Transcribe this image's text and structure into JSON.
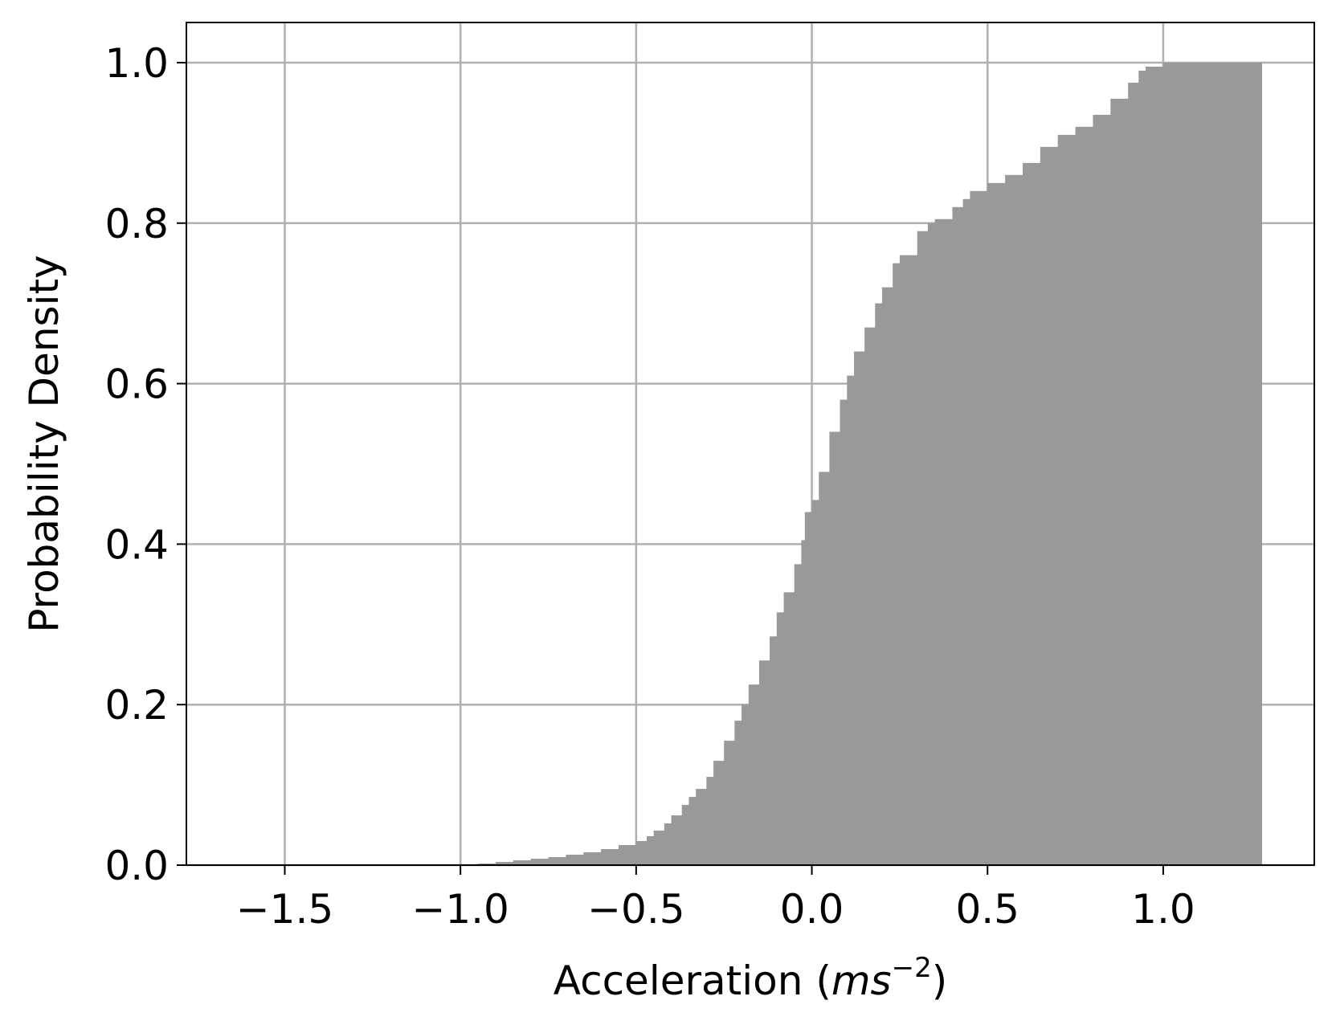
{
  "chart_data": {
    "type": "area",
    "style": "cumulative histogram (filled bars)",
    "xlabel_prefix": "Acceleration (",
    "xlabel_unit_base": "ms",
    "xlabel_unit_exp": "−2",
    "xlabel_suffix": ")",
    "ylabel": "Probability Density",
    "xlim": [
      -1.78,
      1.43
    ],
    "ylim": [
      0.0,
      1.05
    ],
    "xticks": [
      -1.5,
      -1.0,
      -0.5,
      0.0,
      0.5,
      1.0
    ],
    "xtick_labels": [
      "−1.5",
      "−1.0",
      "−0.5",
      "0.0",
      "0.5",
      "1.0"
    ],
    "yticks": [
      0.0,
      0.2,
      0.4,
      0.6,
      0.8,
      1.0
    ],
    "ytick_labels": [
      "0.0",
      "0.2",
      "0.4",
      "0.6",
      "0.8",
      "1.0"
    ],
    "grid": true,
    "legend": "none",
    "fill_color": "#999999",
    "grid_color": "#b0b0b0",
    "series": [
      {
        "x": [
          -1.0,
          -0.97,
          -0.95,
          -0.9,
          -0.85,
          -0.8,
          -0.75,
          -0.7,
          -0.65,
          -0.6,
          -0.55,
          -0.5,
          -0.47,
          -0.45,
          -0.42,
          -0.4,
          -0.37,
          -0.35,
          -0.33,
          -0.3,
          -0.28,
          -0.25,
          -0.22,
          -0.2,
          -0.18,
          -0.15,
          -0.12,
          -0.1,
          -0.08,
          -0.05,
          -0.03,
          -0.02,
          0.0,
          0.02,
          0.05,
          0.08,
          0.1,
          0.12,
          0.15,
          0.18,
          0.2,
          0.23,
          0.25,
          0.3,
          0.33,
          0.35,
          0.4,
          0.43,
          0.45,
          0.5,
          0.55,
          0.6,
          0.65,
          0.7,
          0.75,
          0.8,
          0.85,
          0.9,
          0.93,
          0.95,
          1.0,
          1.05,
          1.1,
          1.2,
          1.28
        ],
        "y": [
          0.0,
          0.001,
          0.002,
          0.004,
          0.006,
          0.008,
          0.01,
          0.013,
          0.016,
          0.02,
          0.025,
          0.03,
          0.036,
          0.043,
          0.052,
          0.062,
          0.075,
          0.085,
          0.095,
          0.11,
          0.13,
          0.155,
          0.18,
          0.2,
          0.225,
          0.255,
          0.285,
          0.315,
          0.34,
          0.375,
          0.405,
          0.44,
          0.455,
          0.49,
          0.54,
          0.58,
          0.61,
          0.64,
          0.67,
          0.7,
          0.72,
          0.75,
          0.76,
          0.79,
          0.8,
          0.805,
          0.82,
          0.83,
          0.84,
          0.85,
          0.86,
          0.875,
          0.895,
          0.91,
          0.92,
          0.935,
          0.955,
          0.975,
          0.99,
          0.995,
          1.0,
          1.0,
          1.0,
          1.0,
          1.0
        ]
      }
    ]
  }
}
